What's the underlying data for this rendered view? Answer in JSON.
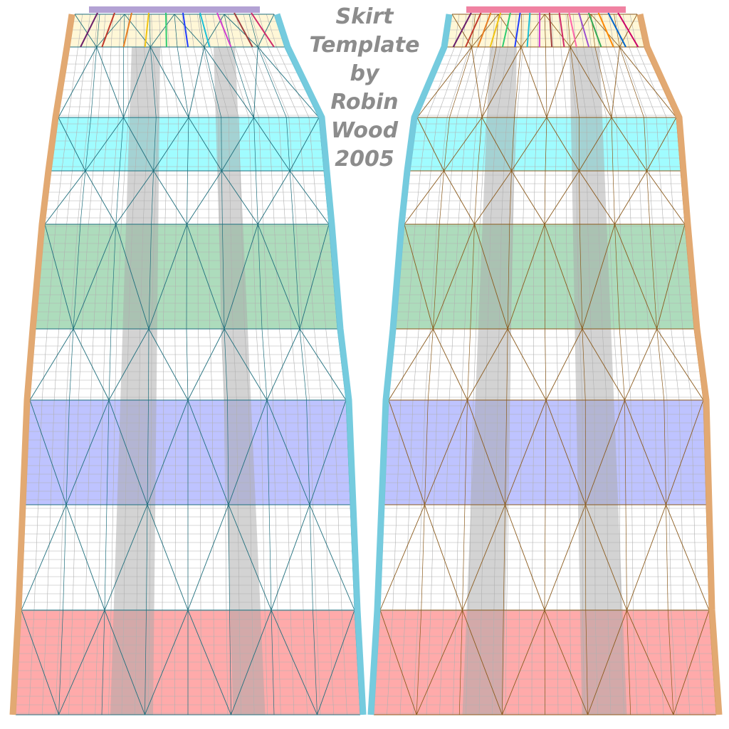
{
  "title_lines": [
    "Skirt",
    "Template",
    "by",
    "Robin",
    "Wood",
    "2005"
  ],
  "colors": {
    "waistband": "#fff6d0",
    "cyan_band": "#8ffcff",
    "green_band": "#9fd6b0",
    "blue_band": "#b3b8ff",
    "red_band": "#ff9b9b",
    "gray_gore": "#a8a8a8",
    "left_mesh": "#1e6e7c",
    "right_mesh": "#8a5a1c",
    "grid_line": "#b0b0b0",
    "edge_orange": "#e0a46a",
    "edge_blue": "#6ec8dc",
    "top_bar_left": "#b3a2d4",
    "top_bar_right": "#f082a2",
    "title_text": "#8c8c8c"
  },
  "panels": [
    {
      "name": "left-panel",
      "mesh": "left_mesh",
      "top_bar": "top_bar_left"
    },
    {
      "name": "right-panel",
      "mesh": "right_mesh",
      "top_bar": "top_bar_right"
    }
  ],
  "waist_colors": [
    "#6a1f6a",
    "#c0392b",
    "#e67e22",
    "#f1c40f",
    "#2ecc71",
    "#1e3cff",
    "#18c0d8",
    "#d040d0",
    "#a04040",
    "#d02a6a",
    "#ff66aa",
    "#9a4fd0",
    "#33aa55",
    "#ff8800",
    "#0066cc",
    "#cc0066"
  ]
}
